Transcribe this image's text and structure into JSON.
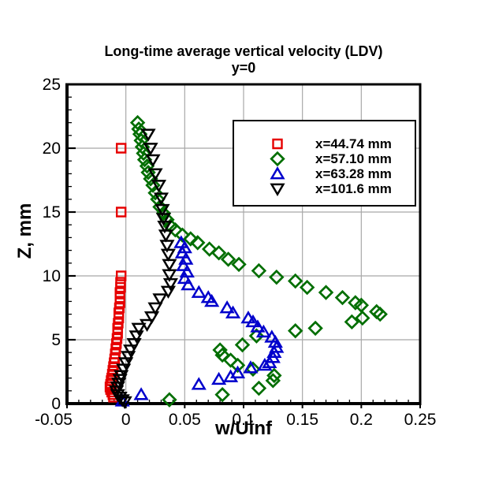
{
  "chart_data": {
    "type": "scatter",
    "title": "Long-time average vertical velocity (LDV)",
    "subtitle": "y=0",
    "xlabel": "w/Uinf",
    "ylabel": "Z, mm",
    "xlim": [
      -0.05,
      0.25
    ],
    "ylim": [
      0,
      25
    ],
    "grid": true,
    "grid_color": "#a8a8a8",
    "axis_color": "#000000",
    "legend_position": "upper right",
    "x_ticks": [
      {
        "v": -0.05,
        "label": "-0.05"
      },
      {
        "v": 0,
        "label": "0"
      },
      {
        "v": 0.05,
        "label": "0.05"
      },
      {
        "v": 0.1,
        "label": "0.1"
      },
      {
        "v": 0.15,
        "label": "0.15"
      },
      {
        "v": 0.2,
        "label": "0.2"
      },
      {
        "v": 0.25,
        "label": "0.25"
      }
    ],
    "y_ticks": [
      {
        "v": 0,
        "label": "0"
      },
      {
        "v": 5,
        "label": "5"
      },
      {
        "v": 10,
        "label": "10"
      },
      {
        "v": 15,
        "label": "15"
      },
      {
        "v": 20,
        "label": "20"
      },
      {
        "v": 25,
        "label": "25"
      }
    ],
    "x_minor_step": 0.01,
    "y_minor_step": 1,
    "series": [
      {
        "name": "x=44.74 mm",
        "marker": "square",
        "color": "#e60000",
        "points": [
          [
            -0.004,
            20
          ],
          [
            -0.004,
            15
          ],
          [
            -0.004,
            10
          ],
          [
            -0.0045,
            9.5
          ],
          [
            -0.0045,
            9.1
          ],
          [
            -0.005,
            8.7
          ],
          [
            -0.005,
            8.3
          ],
          [
            -0.005,
            7.9
          ],
          [
            -0.0055,
            7.5
          ],
          [
            -0.006,
            7.1
          ],
          [
            -0.006,
            6.7
          ],
          [
            -0.0065,
            6.3
          ],
          [
            -0.007,
            5.9
          ],
          [
            -0.007,
            5.5
          ],
          [
            -0.0075,
            5.1
          ],
          [
            -0.008,
            4.7
          ],
          [
            -0.0085,
            4.3
          ],
          [
            -0.009,
            3.9
          ],
          [
            -0.0095,
            3.5
          ],
          [
            -0.01,
            3.2
          ],
          [
            -0.0105,
            2.9
          ],
          [
            -0.011,
            2.6
          ],
          [
            -0.0115,
            2.3
          ],
          [
            -0.012,
            2.0
          ],
          [
            -0.0125,
            1.8
          ],
          [
            -0.013,
            1.5
          ],
          [
            -0.0135,
            1.3
          ],
          [
            -0.013,
            1.1
          ],
          [
            -0.012,
            0.9
          ],
          [
            -0.011,
            0.7
          ],
          [
            -0.0105,
            0.5
          ]
        ]
      },
      {
        "name": "x=57.10 mm",
        "marker": "diamond",
        "color": "#006e00",
        "points": [
          [
            0.01,
            22.0
          ],
          [
            0.011,
            21.5
          ],
          [
            0.012,
            21.1
          ],
          [
            0.013,
            20.6
          ],
          [
            0.014,
            20.1
          ],
          [
            0.015,
            19.6
          ],
          [
            0.016,
            19.1
          ],
          [
            0.018,
            18.6
          ],
          [
            0.019,
            18.1
          ],
          [
            0.021,
            17.6
          ],
          [
            0.023,
            17.1
          ],
          [
            0.025,
            16.5
          ],
          [
            0.027,
            16.0
          ],
          [
            0.029,
            15.4
          ],
          [
            0.032,
            14.9
          ],
          [
            0.035,
            14.4
          ],
          [
            0.038,
            13.9
          ],
          [
            0.042,
            13.6
          ],
          [
            0.048,
            13.2
          ],
          [
            0.055,
            12.9
          ],
          [
            0.061,
            12.6
          ],
          [
            0.071,
            12.1
          ],
          [
            0.079,
            11.8
          ],
          [
            0.087,
            11.3
          ],
          [
            0.096,
            10.9
          ],
          [
            0.113,
            10.4
          ],
          [
            0.128,
            9.9
          ],
          [
            0.144,
            9.6
          ],
          [
            0.154,
            9.1
          ],
          [
            0.17,
            8.7
          ],
          [
            0.184,
            8.3
          ],
          [
            0.195,
            7.9
          ],
          [
            0.2,
            7.7
          ],
          [
            0.213,
            7.2
          ],
          [
            0.216,
            7.0
          ],
          [
            0.201,
            6.7
          ],
          [
            0.192,
            6.4
          ],
          [
            0.161,
            5.9
          ],
          [
            0.144,
            5.7
          ],
          [
            0.111,
            5.3
          ],
          [
            0.099,
            4.6
          ],
          [
            0.08,
            4.2
          ],
          [
            0.082,
            3.8
          ],
          [
            0.089,
            3.4
          ],
          [
            0.095,
            3.0
          ],
          [
            0.108,
            2.7
          ],
          [
            0.126,
            2.2
          ],
          [
            0.125,
            1.8
          ],
          [
            0.113,
            1.2
          ],
          [
            0.082,
            0.7
          ],
          [
            0.037,
            0.3
          ]
        ]
      },
      {
        "name": "x=63.28 mm",
        "marker": "triangle-up",
        "color": "#0000cc",
        "points": [
          [
            0.047,
            12.6
          ],
          [
            0.05,
            12.2
          ],
          [
            0.048,
            11.8
          ],
          [
            0.051,
            11.3
          ],
          [
            0.049,
            10.8
          ],
          [
            0.052,
            10.3
          ],
          [
            0.05,
            9.8
          ],
          [
            0.053,
            9.3
          ],
          [
            0.062,
            8.7
          ],
          [
            0.07,
            8.3
          ],
          [
            0.073,
            8.0
          ],
          [
            0.086,
            7.5
          ],
          [
            0.091,
            7.1
          ],
          [
            0.104,
            6.7
          ],
          [
            0.108,
            6.4
          ],
          [
            0.112,
            6.0
          ],
          [
            0.117,
            5.6
          ],
          [
            0.124,
            5.2
          ],
          [
            0.127,
            4.8
          ],
          [
            0.128,
            4.4
          ],
          [
            0.126,
            4.0
          ],
          [
            0.125,
            3.6
          ],
          [
            0.122,
            3.2
          ],
          [
            0.118,
            3.0
          ],
          [
            0.106,
            2.8
          ],
          [
            0.095,
            2.4
          ],
          [
            0.089,
            2.1
          ],
          [
            0.079,
            1.9
          ],
          [
            0.062,
            1.5
          ],
          [
            0.013,
            0.7
          ],
          [
            -0.003,
            0.2
          ]
        ]
      },
      {
        "name": "x=101.6 mm",
        "marker": "triangle-down",
        "color": "#000000",
        "points": [
          [
            0.019,
            21.1
          ],
          [
            0.021,
            20.0
          ],
          [
            0.023,
            19.1
          ],
          [
            0.025,
            18.0
          ],
          [
            0.028,
            17.1
          ],
          [
            0.03,
            16.1
          ],
          [
            0.031,
            15.2
          ],
          [
            0.032,
            14.5
          ],
          [
            0.033,
            13.9
          ],
          [
            0.034,
            13.2
          ],
          [
            0.035,
            12.4
          ],
          [
            0.036,
            11.7
          ],
          [
            0.037,
            10.9
          ],
          [
            0.037,
            10.1
          ],
          [
            0.038,
            9.4
          ],
          [
            0.036,
            8.8
          ],
          [
            0.029,
            8.2
          ],
          [
            0.025,
            7.5
          ],
          [
            0.022,
            6.8
          ],
          [
            0.018,
            6.2
          ],
          [
            0.011,
            5.9
          ],
          [
            0.009,
            5.3
          ],
          [
            0.007,
            4.7
          ],
          [
            0.004,
            4.2
          ],
          [
            0.002,
            3.7
          ],
          [
            0.0,
            3.2
          ],
          [
            -0.002,
            2.7
          ],
          [
            -0.004,
            2.2
          ],
          [
            -0.005,
            1.9
          ],
          [
            -0.006,
            1.6
          ],
          [
            -0.007,
            1.3
          ],
          [
            -0.008,
            1.0
          ],
          [
            -0.007,
            0.7
          ],
          [
            -0.005,
            0.5
          ],
          [
            -0.003,
            0.3
          ],
          [
            -0.001,
            0.15
          ]
        ]
      }
    ]
  }
}
